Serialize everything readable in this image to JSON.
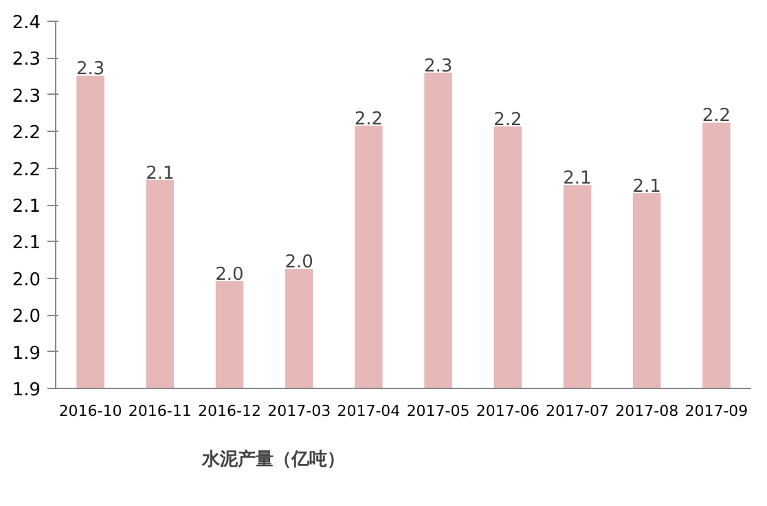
{
  "chart_data": {
    "type": "bar",
    "categories": [
      "2016-10",
      "2016-11",
      "2016-12",
      "2017-03",
      "2017-04",
      "2017-05",
      "2017-06",
      "2017-07",
      "2017-08",
      "2017-09"
    ],
    "series": [
      {
        "name": "水泥产量（亿吨）",
        "color": "#e6b9b8",
        "values": [
          2.326,
          2.184,
          2.046,
          2.063,
          2.258,
          2.33,
          2.257,
          2.177,
          2.166,
          2.262
        ]
      }
    ],
    "value_labels": [
      "2.3",
      "2.1",
      "2.0",
      "2.0",
      "2.2",
      "2.3",
      "2.2",
      "2.1",
      "2.1",
      "2.2"
    ],
    "ylim": [
      1.9,
      2.4
    ],
    "yticks": [
      {
        "value": 1.9,
        "label": "1.9"
      },
      {
        "value": 1.95,
        "label": "1.9"
      },
      {
        "value": 2.0,
        "label": "2.0"
      },
      {
        "value": 2.05,
        "label": "2.0"
      },
      {
        "value": 2.1,
        "label": "2.1"
      },
      {
        "value": 2.15,
        "label": "2.1"
      },
      {
        "value": 2.2,
        "label": "2.2"
      },
      {
        "value": 2.25,
        "label": "2.2"
      },
      {
        "value": 2.3,
        "label": "2.3"
      },
      {
        "value": 2.35,
        "label": "2.3"
      },
      {
        "value": 2.4,
        "label": "2.4"
      }
    ],
    "grid": false,
    "legend": "bottom"
  }
}
